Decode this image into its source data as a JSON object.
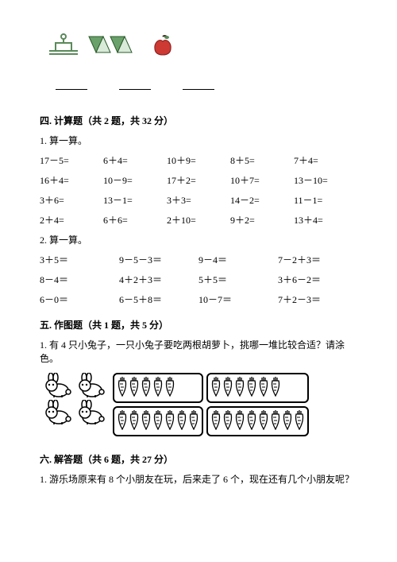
{
  "shapes": {
    "hat_stroke": "#5a8a5a",
    "triangle_down_fill": "#6aa06a",
    "triangle_up_fill": "#d9ead9",
    "apple_fill": "#cc3a33",
    "apple_leaf": "#5a8a5a"
  },
  "section4": {
    "title": "四. 计算题（共 2 题，共 32 分）",
    "sub1": "1. 算一算。",
    "rows1": [
      [
        "17－5=",
        "6＋4=",
        "10＋9=",
        "8＋5=",
        "7＋4="
      ],
      [
        "16＋4=",
        "10－9=",
        "17＋2=",
        "10＋7=",
        "13－10="
      ],
      [
        "3＋6=",
        "13－1=",
        "3＋3=",
        "14－2=",
        "11－1="
      ],
      [
        "2＋4=",
        "6＋6=",
        "2＋10=",
        "9＋2=",
        "13＋4="
      ]
    ],
    "sub2": "2. 算一算。",
    "rows2": [
      [
        "3＋5＝",
        "9－5－3＝",
        "9－4＝",
        "7－2＋3＝"
      ],
      [
        "8－4＝",
        "4＋2＋3＝",
        "5＋5＝",
        "3＋6－2＝"
      ],
      [
        "6－0＝",
        "6－5＋8＝",
        "10－7＝",
        "7＋2－3＝"
      ]
    ]
  },
  "section5": {
    "title": "五. 作图题（共 1 题，共 5 分）",
    "q1": "1. 有 4 只小兔子，一只小兔子要吃两根胡萝卜，挑哪一堆比较合适？请涂色。",
    "rabbit_count": 4,
    "carrot_counts": [
      5,
      6,
      7,
      8
    ]
  },
  "section6": {
    "title": "六. 解答题（共 6 题，共 27 分）",
    "q1": "1. 游乐场原来有 8 个小朋友在玩，后来走了 6 个，现在还有几个小朋友呢？"
  }
}
